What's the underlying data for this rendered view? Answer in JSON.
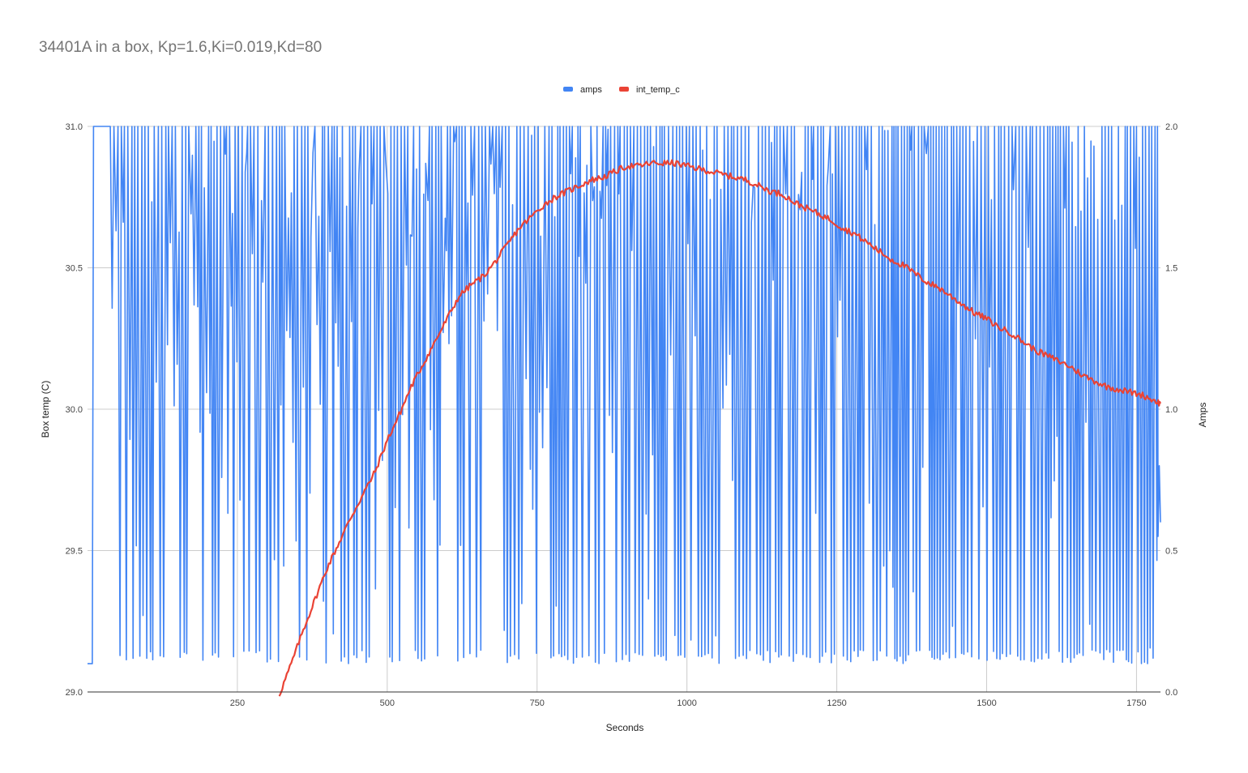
{
  "chart_data": {
    "type": "line",
    "title": "34401A in a box, Kp=1.6,Ki=0.019,Kd=80",
    "xlabel": "Seconds",
    "ylabel_left": "Box temp (C)",
    "ylabel_right": "Amps",
    "xlim": [
      0,
      1790
    ],
    "x_ticks": [
      250,
      500,
      750,
      1000,
      1250,
      1500,
      1750
    ],
    "x_tick_labels": [
      "250",
      "500",
      "750",
      "1000",
      "1250",
      "1500",
      "1750"
    ],
    "ylim_left": [
      29.0,
      31.0
    ],
    "y_ticks_left": [
      "29.0",
      "29.5",
      "30.0",
      "30.5",
      "31.0"
    ],
    "ylim_right": [
      0.0,
      2.0
    ],
    "y_ticks_right": [
      "0.0",
      "0.5",
      "1.0",
      "1.5",
      "2.0"
    ],
    "grid": true,
    "legend_position": "top-center",
    "series": [
      {
        "name": "amps",
        "axis": "right",
        "color": "#4285f4",
        "style": "rapidly oscillating between ~0.1 and 2.0 A (saturated at 2.0 A from 10s to ~35s)",
        "anchor_points": [
          [
            0,
            0.1
          ],
          [
            8,
            0.1
          ],
          [
            10,
            2.0
          ],
          [
            35,
            2.0
          ],
          [
            38,
            1.1
          ],
          [
            42,
            2.0
          ],
          [
            45,
            0.47
          ],
          [
            50,
            2.0
          ],
          [
            1790,
            0.6
          ]
        ]
      },
      {
        "name": "int_temp_c",
        "axis": "left",
        "color": "#ea4335",
        "x": [
          320,
          340,
          360,
          380,
          400,
          420,
          440,
          460,
          480,
          500,
          520,
          540,
          560,
          580,
          600,
          620,
          640,
          660,
          680,
          700,
          720,
          740,
          760,
          780,
          800,
          820,
          840,
          860,
          880,
          900,
          920,
          940,
          960,
          980,
          1000,
          1020,
          1040,
          1060,
          1080,
          1100,
          1120,
          1140,
          1160,
          1180,
          1200,
          1220,
          1240,
          1260,
          1280,
          1300,
          1320,
          1340,
          1360,
          1380,
          1400,
          1420,
          1440,
          1460,
          1480,
          1500,
          1520,
          1540,
          1560,
          1580,
          1600,
          1620,
          1640,
          1660,
          1680,
          1700,
          1720,
          1740,
          1760,
          1780,
          1790
        ],
        "y": [
          28.99,
          29.1,
          29.22,
          29.33,
          29.44,
          29.53,
          29.62,
          29.7,
          29.78,
          29.89,
          29.98,
          30.08,
          30.16,
          30.24,
          30.32,
          30.4,
          30.44,
          30.47,
          30.52,
          30.58,
          30.64,
          30.68,
          30.72,
          30.75,
          30.77,
          30.79,
          30.81,
          30.82,
          30.84,
          30.86,
          30.86,
          30.87,
          30.87,
          30.87,
          30.86,
          30.85,
          30.84,
          30.83,
          30.82,
          30.81,
          30.79,
          30.77,
          30.76,
          30.73,
          30.71,
          30.69,
          30.67,
          30.64,
          30.62,
          30.59,
          30.56,
          30.53,
          30.51,
          30.48,
          30.45,
          30.43,
          30.4,
          30.37,
          30.34,
          30.32,
          30.29,
          30.27,
          30.24,
          30.21,
          30.19,
          30.17,
          30.15,
          30.12,
          30.1,
          30.08,
          30.07,
          30.06,
          30.05,
          30.03,
          30.02
        ]
      }
    ]
  }
}
